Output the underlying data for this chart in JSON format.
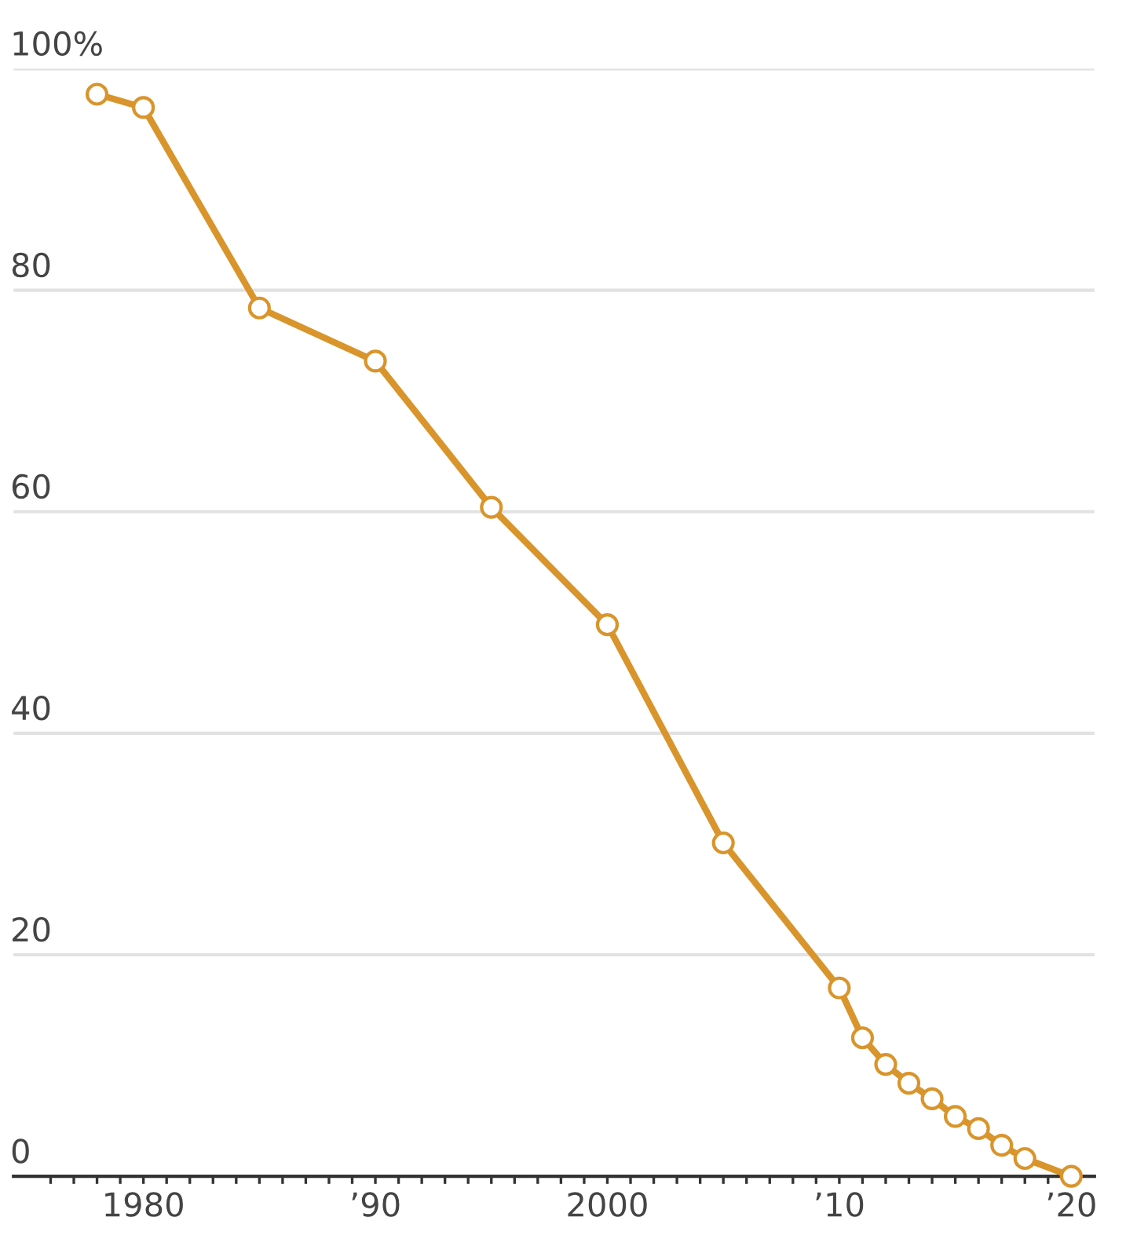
{
  "chart_data": {
    "type": "line",
    "x": [
      1978,
      1980,
      1985,
      1990,
      1995,
      2000,
      2005,
      2010,
      2011,
      2012,
      2013,
      2014,
      2015,
      2016,
      2017,
      2018,
      2020
    ],
    "series": [
      {
        "color": "#d9952b",
        "values": [
          97.7,
          96.5,
          78.4,
          73.6,
          60.4,
          49.8,
          30.1,
          17.0,
          12.5,
          10.1,
          8.4,
          7.0,
          5.4,
          4.3,
          2.8,
          1.6,
          0
        ]
      }
    ],
    "ylim": [
      0,
      100
    ],
    "yticks": [
      0,
      20,
      40,
      60,
      80,
      {
        "value": 100,
        "label": "100%"
      }
    ],
    "xlim": [
      1974.4,
      2021
    ],
    "xticks": [
      {
        "value": 1976,
        "label": null
      },
      {
        "value": 1977,
        "label": null
      },
      {
        "value": 1978,
        "label": null
      },
      {
        "value": 1979,
        "label": null
      },
      1980,
      {
        "value": 1981,
        "label": null
      },
      {
        "value": 1982,
        "label": null
      },
      {
        "value": 1983,
        "label": null
      },
      {
        "value": 1984,
        "label": null
      },
      {
        "value": 1985,
        "label": null
      },
      {
        "value": 1986,
        "label": null
      },
      {
        "value": 1987,
        "label": null
      },
      {
        "value": 1988,
        "label": null
      },
      {
        "value": 1989,
        "label": null
      },
      {
        "value": 1990,
        "label": "’90"
      },
      {
        "value": 1991,
        "label": null
      },
      {
        "value": 1992,
        "label": null
      },
      {
        "value": 1993,
        "label": null
      },
      {
        "value": 1994,
        "label": null
      },
      {
        "value": 1995,
        "label": null
      },
      {
        "value": 1996,
        "label": null
      },
      {
        "value": 1997,
        "label": null
      },
      {
        "value": 1998,
        "label": null
      },
      {
        "value": 1999,
        "label": null
      },
      2000,
      {
        "value": 2001,
        "label": null
      },
      {
        "value": 2002,
        "label": null
      },
      {
        "value": 2003,
        "label": null
      },
      {
        "value": 2004,
        "label": null
      },
      {
        "value": 2005,
        "label": null
      },
      {
        "value": 2006,
        "label": null
      },
      {
        "value": 2007,
        "label": null
      },
      {
        "value": 2008,
        "label": null
      },
      {
        "value": 2009,
        "label": null
      },
      {
        "value": 2010,
        "label": "’10"
      },
      {
        "value": 2011,
        "label": null
      },
      {
        "value": 2012,
        "label": null
      },
      {
        "value": 2013,
        "label": null
      },
      {
        "value": 2014,
        "label": null
      },
      {
        "value": 2015,
        "label": null
      },
      {
        "value": 2016,
        "label": null
      },
      {
        "value": 2017,
        "label": null
      },
      {
        "value": 2018,
        "label": null
      },
      {
        "value": 2019,
        "label": null
      },
      {
        "value": 2020,
        "label": "’20"
      }
    ],
    "grid": "y",
    "marker": "circle",
    "line_style": "solid"
  }
}
